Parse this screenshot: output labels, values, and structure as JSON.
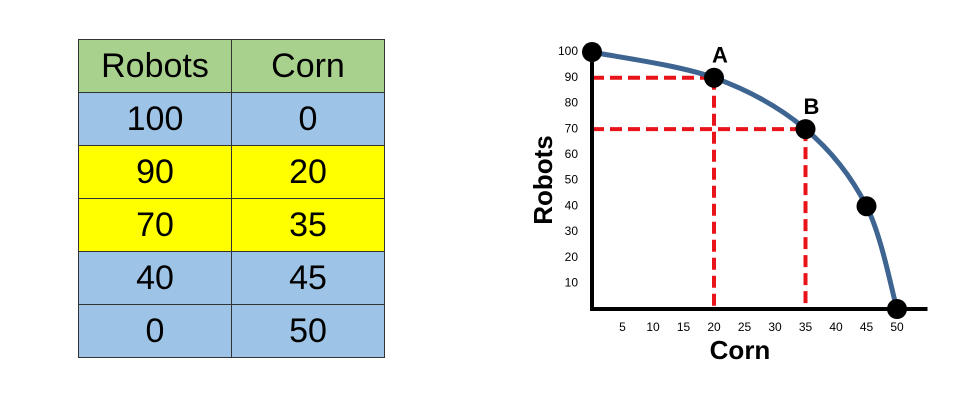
{
  "table": {
    "columns": [
      "Robots",
      "Corn"
    ],
    "rows": [
      [
        100,
        0
      ],
      [
        90,
        20
      ],
      [
        70,
        35
      ],
      [
        40,
        45
      ],
      [
        0,
        50
      ]
    ],
    "header_color": "#a9d18e",
    "row_colors": [
      "#9dc3e6",
      "#ffff00",
      "#ffff00",
      "#9dc3e6",
      "#9dc3e6"
    ]
  },
  "chart_data": {
    "type": "line",
    "x_label": "Corn",
    "y_label": "Robots",
    "x": [
      0,
      20,
      35,
      45,
      50
    ],
    "series": [
      {
        "values": [
          100,
          90,
          70,
          40,
          0
        ],
        "color": "#3e6491"
      }
    ],
    "xlim": [
      0,
      55
    ],
    "ylim": [
      0,
      100
    ],
    "xticks": [
      5,
      10,
      15,
      20,
      25,
      30,
      35,
      40,
      45,
      50
    ],
    "yticks": [
      10,
      20,
      30,
      40,
      50,
      60,
      70,
      80,
      90,
      100
    ],
    "annotations": [
      {
        "text": "A",
        "x": 20,
        "y": 90
      },
      {
        "text": "B",
        "x": 35,
        "y": 70
      }
    ],
    "guide_color": "#e8141a"
  }
}
